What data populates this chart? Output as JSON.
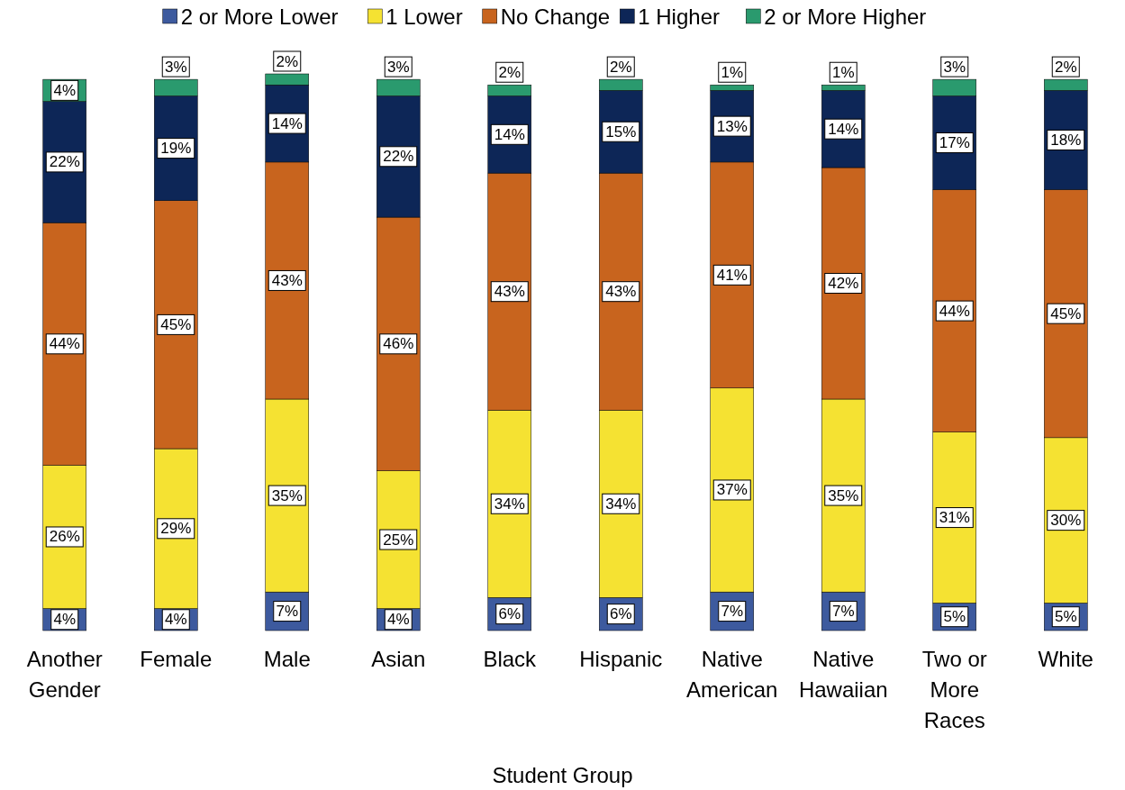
{
  "chart_data": {
    "type": "bar",
    "stacked": true,
    "xlabel": "Student Group",
    "legend": "top",
    "categories": [
      "Another Gender",
      "Female",
      "Male",
      "Asian",
      "Black",
      "Hispanic",
      "Native American",
      "Native Hawaiian",
      "Two or More Races",
      "White"
    ],
    "series": [
      {
        "name": "2 or More Lower",
        "color": "#3d5a9e",
        "values": [
          4,
          4,
          7,
          4,
          6,
          6,
          7,
          7,
          5,
          5
        ],
        "value_labels": [
          "4%",
          "4%",
          "7%",
          "4%",
          "6%",
          "6%",
          "7%",
          "7%",
          "5%",
          "5%"
        ]
      },
      {
        "name": "1 Lower",
        "color": "#f5e232",
        "values": [
          26,
          29,
          35,
          25,
          34,
          34,
          37,
          35,
          31,
          30
        ],
        "value_labels": [
          "26%",
          "29%",
          "35%",
          "25%",
          "34%",
          "34%",
          "37%",
          "35%",
          "31%",
          "30%"
        ]
      },
      {
        "name": "No Change",
        "color": "#c8641e",
        "values": [
          44,
          45,
          43,
          46,
          43,
          43,
          41,
          42,
          44,
          45
        ],
        "value_labels": [
          "44%",
          "45%",
          "43%",
          "46%",
          "43%",
          "43%",
          "41%",
          "42%",
          "44%",
          "45%"
        ]
      },
      {
        "name": "1 Higher",
        "color": "#0d2657",
        "values": [
          22,
          19,
          14,
          22,
          14,
          15,
          13,
          14,
          17,
          18
        ],
        "value_labels": [
          "22%",
          "19%",
          "14%",
          "22%",
          "14%",
          "15%",
          "13%",
          "14%",
          "17%",
          "18%"
        ]
      },
      {
        "name": "2 or More Higher",
        "color": "#2a9a6e",
        "values": [
          4,
          3,
          2,
          3,
          2,
          2,
          1,
          1,
          3,
          2
        ],
        "value_labels": [
          "4%",
          "3%",
          "2%",
          "3%",
          "2%",
          "2%",
          "1%",
          "1%",
          "3%",
          "2%"
        ]
      }
    ]
  }
}
